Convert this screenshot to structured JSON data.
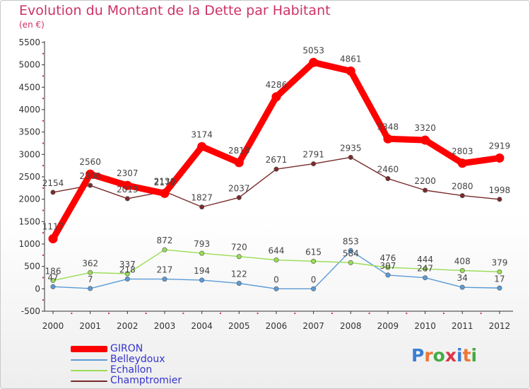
{
  "title": "Evolution du Montant de la Dette par Habitant",
  "subtitle": "(en €)",
  "logo_text": "Proxiti",
  "chart_data": {
    "type": "line",
    "title": "Evolution du Montant de la Dette par Habitant",
    "ylabel": "(en €)",
    "ylim": [
      -500,
      5500
    ],
    "y_ticks": [
      -500,
      0,
      500,
      1000,
      1500,
      2000,
      2500,
      3000,
      3500,
      4000,
      4500,
      5000,
      5500
    ],
    "categories": [
      "2000",
      "2001",
      "2002",
      "2003",
      "2004",
      "2005",
      "2006",
      "2007",
      "2008",
      "2009",
      "2010",
      "2011",
      "2012"
    ],
    "grid": false,
    "legend_position": "bottom-left",
    "series": [
      {
        "name": "GIRON",
        "color": "#ff0000",
        "emphasis": true,
        "values": [
          1117,
          2560,
          2307,
          2130,
          3174,
          2818,
          4286,
          5053,
          4861,
          3348,
          3320,
          2803,
          2919
        ],
        "labels": [
          "1117",
          "2560",
          "2307",
          "2130",
          "3174",
          "2818",
          "4286",
          "5053",
          "4861",
          "3348",
          "3320",
          "2803",
          "2919"
        ]
      },
      {
        "name": "Belleydoux",
        "color": "#5b9bd5",
        "values": [
          47,
          7,
          218,
          217,
          194,
          122,
          0,
          0,
          853,
          307,
          247,
          34,
          17
        ],
        "labels": [
          "47",
          "7",
          "218",
          "217",
          "194",
          "122",
          "0",
          "0",
          "853",
          "307",
          "247",
          "34",
          "17"
        ]
      },
      {
        "name": "Echallon",
        "color": "#99dd55",
        "values": [
          186,
          362,
          337,
          872,
          793,
          720,
          644,
          615,
          584,
          476,
          444,
          408,
          379
        ],
        "labels": [
          "186",
          "362",
          "337",
          "872",
          "793",
          "720",
          "644",
          "615",
          "584",
          "476",
          "444",
          "408",
          "379"
        ]
      },
      {
        "name": "Champtromier",
        "color": "#7a2a2a",
        "values": [
          2154,
          2308,
          2013,
          2172,
          1827,
          2037,
          2671,
          2791,
          2935,
          2460,
          2200,
          2080,
          1998
        ],
        "labels": [
          "2154",
          "2308",
          "2013",
          "2172",
          "1827",
          "2037",
          "2671",
          "2791",
          "2935",
          "2460",
          "2200",
          "2080",
          "1998"
        ]
      }
    ]
  }
}
